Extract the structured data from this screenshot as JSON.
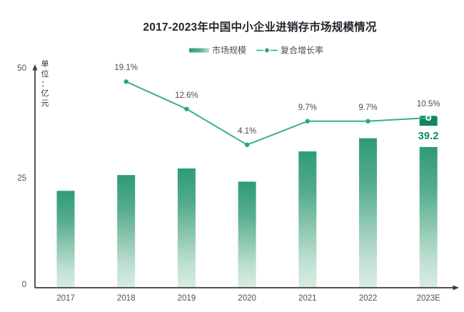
{
  "title": "2017-2023年中国中小企业进销存市场规模情况",
  "legend": {
    "items": [
      {
        "label": "市场规模",
        "type": "bar"
      },
      {
        "label": "复合增长率",
        "type": "line"
      }
    ]
  },
  "y_axis": {
    "unit_label": "单位：亿元",
    "ticks": [
      "0",
      "25",
      "50"
    ],
    "tick_values": [
      0,
      25,
      50
    ]
  },
  "colors": {
    "bar_top": "#2e9b76",
    "bar_mid": "#8ac6ad",
    "bar_bottom": "#d9ece2",
    "bar_cap": "#128760",
    "line": "#35b287",
    "marker": "#2aa87c",
    "value_label": "#0d8a60",
    "axis": "#3c3c3c",
    "text_gray": "#4c4c54",
    "title_text": "#25252d"
  },
  "chart_data": {
    "type": "bar+line",
    "title": "2017-2023年中国中小企业进销存市场规模情况",
    "categories": [
      "2017",
      "2018",
      "2019",
      "2020",
      "2021",
      "2022",
      "2023E"
    ],
    "series": [
      {
        "name": "市场规模",
        "type": "bar",
        "unit": "亿元",
        "values": [
          22.1,
          25.7,
          27.2,
          24.2,
          31.1,
          34.1,
          39.2
        ]
      },
      {
        "name": "复合增长率",
        "type": "line",
        "unit": "%",
        "values": [
          null,
          19.1,
          12.6,
          4.1,
          9.7,
          9.7,
          10.5
        ]
      }
    ],
    "line_point_labels": [
      "19.1%",
      "12.6%",
      "4.1%",
      "9.7%",
      "9.7%",
      "10.5%"
    ],
    "highlight_bar": {
      "category": "2023E",
      "value_label": "39.2",
      "cap_top_value": 39.2,
      "cap_bottom_value": 36.95,
      "body_top_value": 32.1
    },
    "ylabel": "单位：亿元",
    "ylim": [
      0,
      50
    ],
    "line_ylim": [
      0,
      30
    ],
    "grid": false,
    "legend_position": "top"
  }
}
